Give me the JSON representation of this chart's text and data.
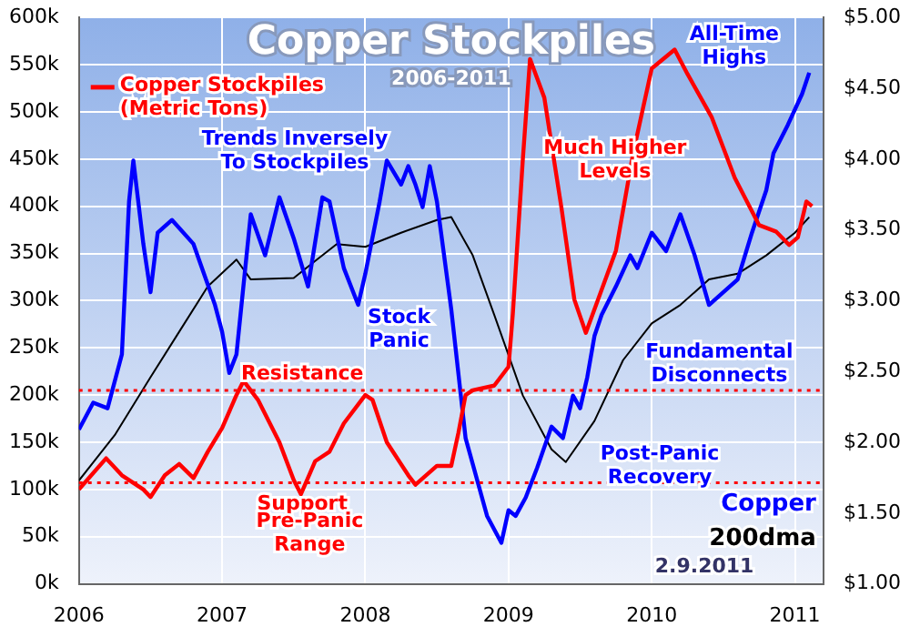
{
  "chart_data": {
    "type": "line",
    "title": "Copper Stockpiles",
    "subtitle": "2006-2011",
    "xlim": [
      2006,
      2011.2
    ],
    "xticks": [
      2006,
      2007,
      2008,
      2009,
      2010,
      2011
    ],
    "ylim": [
      0,
      600000
    ],
    "yticks": [
      {
        "value": 0,
        "label": "0k"
      },
      {
        "value": 50000,
        "label": "50k"
      },
      {
        "value": 100000,
        "label": "100k"
      },
      {
        "value": 150000,
        "label": "150k"
      },
      {
        "value": 200000,
        "label": "200k"
      },
      {
        "value": 250000,
        "label": "250k"
      },
      {
        "value": 300000,
        "label": "300k"
      },
      {
        "value": 350000,
        "label": "350k"
      },
      {
        "value": 400000,
        "label": "400k"
      },
      {
        "value": 450000,
        "label": "450k"
      },
      {
        "value": 500000,
        "label": "500k"
      },
      {
        "value": 550000,
        "label": "550k"
      },
      {
        "value": 600000,
        "label": "600k"
      }
    ],
    "y2lim": [
      1,
      5
    ],
    "y2ticks": [
      {
        "value": 1,
        "label": "$1.00"
      },
      {
        "value": 1.5,
        "label": "$1.50"
      },
      {
        "value": 2,
        "label": "$2.00"
      },
      {
        "value": 2.5,
        "label": "$2.50"
      },
      {
        "value": 3,
        "label": "$3.00"
      },
      {
        "value": 3.5,
        "label": "$3.50"
      },
      {
        "value": 4,
        "label": "$4.00"
      },
      {
        "value": 4.5,
        "label": "$4.50"
      },
      {
        "value": 5,
        "label": "$5.00"
      }
    ],
    "grid": true,
    "series": [
      {
        "name": "Copper Stockpiles (Metric Tons)",
        "color": "#ff0000",
        "x": [
          2006,
          2006.19,
          2006.3,
          2006.45,
          2006.5,
          2006.6,
          2006.7,
          2006.8,
          2006.9,
          2007,
          2007.1,
          2007.15,
          2007.25,
          2007.4,
          2007.5,
          2007.55,
          2007.65,
          2007.75,
          2007.85,
          2008,
          2008.05,
          2008.15,
          2008.3,
          2008.35,
          2008.5,
          2008.6,
          2008.65,
          2008.7,
          2008.75,
          2008.9,
          2009,
          2009.03,
          2009.1,
          2009.15,
          2009.25,
          2009.37,
          2009.46,
          2009.54,
          2009.75,
          2009.87,
          2010,
          2010.16,
          2010.25,
          2010.42,
          2010.58,
          2010.75,
          2010.87,
          2010.96,
          2011.02,
          2011.08,
          2011.12
        ],
        "values": [
          100000,
          133000,
          115000,
          100000,
          92000,
          115000,
          127000,
          112000,
          140000,
          165000,
          200000,
          215000,
          195000,
          150000,
          110000,
          95000,
          130000,
          140000,
          170000,
          200000,
          195000,
          150000,
          115000,
          105000,
          125000,
          125000,
          160000,
          200000,
          205000,
          210000,
          230000,
          286000,
          450000,
          556000,
          515000,
          398000,
          301000,
          266000,
          353000,
          456000,
          546000,
          566000,
          540000,
          494000,
          430000,
          380000,
          373000,
          359000,
          367000,
          405000,
          400000
        ]
      },
      {
        "name": "Copper",
        "color": "#0000ff",
        "axis": "y2",
        "x": [
          2006,
          2006.1,
          2006.2,
          2006.3,
          2006.35,
          2006.38,
          2006.45,
          2006.5,
          2006.55,
          2006.65,
          2006.8,
          2006.95,
          2007,
          2007.05,
          2007.1,
          2007.2,
          2007.3,
          2007.4,
          2007.5,
          2007.6,
          2007.7,
          2007.75,
          2007.85,
          2007.95,
          2008,
          2008.1,
          2008.15,
          2008.25,
          2008.3,
          2008.35,
          2008.4,
          2008.45,
          2008.5,
          2008.6,
          2008.7,
          2008.85,
          2008.95,
          2009,
          2009.05,
          2009.12,
          2009.2,
          2009.3,
          2009.38,
          2009.45,
          2009.5,
          2009.55,
          2009.6,
          2009.65,
          2009.75,
          2009.85,
          2009.9,
          2010,
          2010.1,
          2010.2,
          2010.3,
          2010.4,
          2010.5,
          2010.6,
          2010.7,
          2010.8,
          2010.85,
          2010.95,
          2011.05,
          2011.1
        ],
        "values": [
          2.09,
          2.28,
          2.24,
          2.62,
          3.7,
          3.99,
          3.4,
          3.06,
          3.48,
          3.57,
          3.4,
          2.97,
          2.78,
          2.49,
          2.62,
          3.61,
          3.32,
          3.73,
          3.44,
          3.1,
          3.73,
          3.7,
          3.23,
          2.97,
          3.19,
          3.7,
          3.99,
          3.82,
          3.95,
          3.82,
          3.66,
          3.95,
          3.7,
          2.94,
          2.03,
          1.48,
          1.29,
          1.52,
          1.48,
          1.61,
          1.82,
          2.11,
          2.03,
          2.33,
          2.24,
          2.46,
          2.75,
          2.9,
          3.1,
          3.32,
          3.23,
          3.48,
          3.35,
          3.61,
          3.32,
          2.97,
          3.06,
          3.15,
          3.48,
          3.78,
          4.04,
          4.24,
          4.46,
          4.61
        ]
      },
      {
        "name": "200dma",
        "color": "#000000",
        "axis": "y2",
        "x": [
          2006,
          2006.25,
          2006.5,
          2006.7,
          2006.9,
          2007.1,
          2007.2,
          2007.5,
          2007.65,
          2007.8,
          2008,
          2008.25,
          2008.5,
          2008.6,
          2008.75,
          2008.9,
          2009.1,
          2009.3,
          2009.4,
          2009.6,
          2009.8,
          2010,
          2010.2,
          2010.4,
          2010.6,
          2010.8,
          2011,
          2011.1
        ],
        "values": [
          1.73,
          2.05,
          2.46,
          2.78,
          3.1,
          3.29,
          3.15,
          3.16,
          3.28,
          3.4,
          3.38,
          3.48,
          3.57,
          3.59,
          3.32,
          2.9,
          2.33,
          1.95,
          1.86,
          2.15,
          2.58,
          2.84,
          2.97,
          3.15,
          3.19,
          3.32,
          3.48,
          3.59
        ]
      }
    ],
    "ref_lines": [
      {
        "axis": "y",
        "value": 205000,
        "label": "Resistance",
        "color": "#ff0000",
        "line_style": "dotted"
      },
      {
        "axis": "y",
        "value": 107000,
        "label": "Support",
        "color": "#ff0000",
        "line_style": "dotted"
      }
    ],
    "annotations": [
      "Trends Inversely To Stockpiles",
      "Stock Panic",
      "Much Higher Levels",
      "All-Time Highs",
      "Pre-Panic Range",
      "Post-Panic Recovery",
      "Fundamental Disconnects",
      "2.9.2011"
    ]
  }
}
